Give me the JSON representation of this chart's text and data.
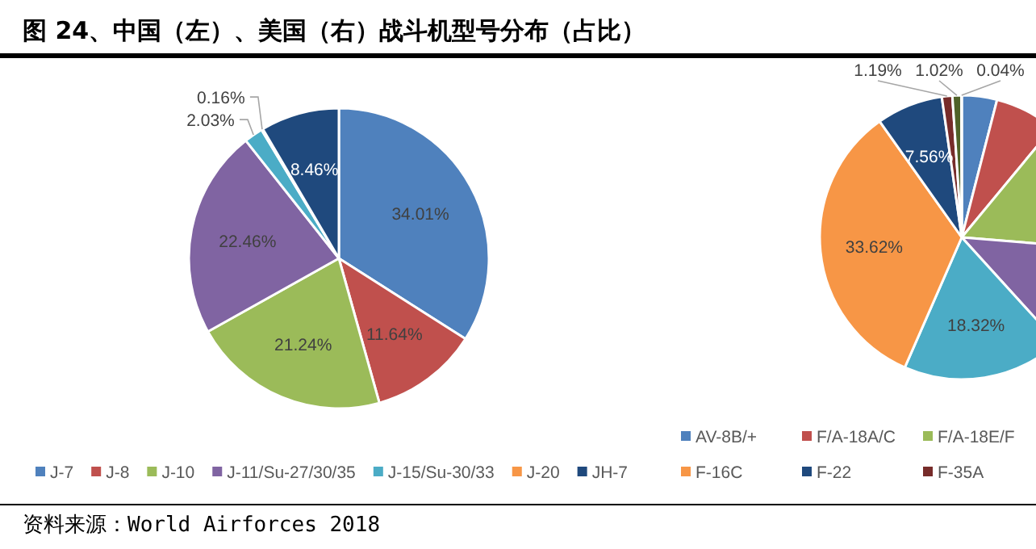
{
  "chart_data": [
    {
      "type": "pie",
      "title": "图 24、中国（左）、美国（右）战斗机型号分布（占比）",
      "annotations": [
        "资料来源：World Airforces 2018"
      ],
      "categories": [
        "J-7",
        "J-8",
        "J-10",
        "J-11/Su-27/30/35",
        "J-15/Su-30/33",
        "J-20",
        "JH-7"
      ],
      "values": [
        34.01,
        11.64,
        21.24,
        22.46,
        2.03,
        0.16,
        8.46
      ],
      "colors": [
        "#4f81bd",
        "#c0504d",
        "#9bbb59",
        "#8064a2",
        "#4bacc6",
        "#f79646",
        "#1f497d"
      ],
      "value_labels": [
        "34.01%",
        "11.64%",
        "21.24%",
        "22.46%",
        "2.03%",
        "0.16%",
        "8.46%"
      ],
      "legend": "bottom"
    },
    {
      "type": "pie",
      "categories": [
        "AV-8B/+",
        "F/A-18A/C",
        "F/A-18E/F",
        null,
        null,
        "F-16C",
        "F-22",
        "F-35A",
        null,
        null
      ],
      "values": [
        4.0,
        7.0,
        15.3,
        11.95,
        18.32,
        33.62,
        7.56,
        1.19,
        1.02,
        0.04
      ],
      "colors": [
        "#4f81bd",
        "#c0504d",
        "#9bbb59",
        "#8064a2",
        "#4bacc6",
        "#f79646",
        "#1f497d",
        "#772c2a",
        "#4f6228",
        "#2c4d75"
      ],
      "value_labels": [
        null,
        null,
        null,
        null,
        "18.32%",
        "33.62%",
        "7.56%",
        "1.19%",
        "1.02%",
        "0.04%"
      ],
      "legend": "bottom"
    }
  ]
}
